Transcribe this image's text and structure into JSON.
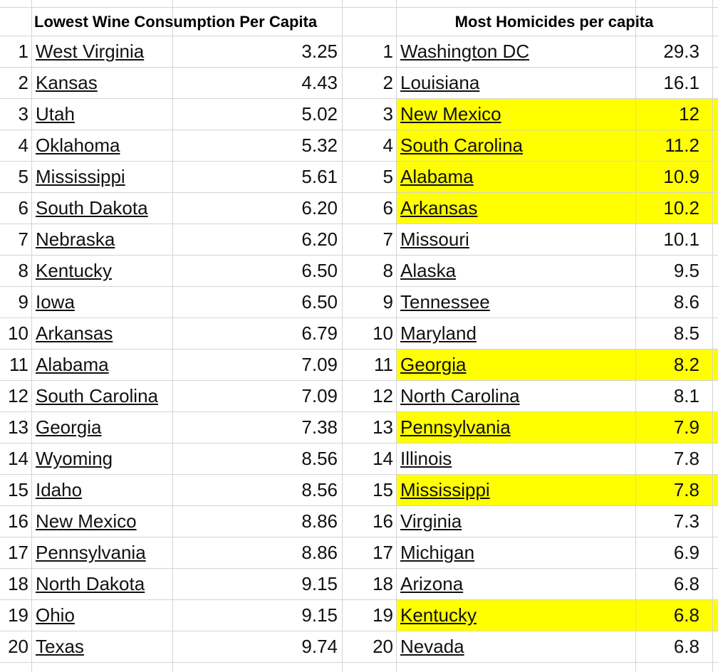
{
  "tables": [
    {
      "title": "Lowest Wine Consumption Per Capita",
      "rows": [
        {
          "rank": "1",
          "name": "West Virginia",
          "value": "3.25"
        },
        {
          "rank": "2",
          "name": "Kansas",
          "value": "4.43"
        },
        {
          "rank": "3",
          "name": "Utah",
          "value": "5.02"
        },
        {
          "rank": "4",
          "name": "Oklahoma",
          "value": "5.32"
        },
        {
          "rank": "5",
          "name": "Mississippi",
          "value": "5.61"
        },
        {
          "rank": "6",
          "name": "South Dakota",
          "value": "6.20"
        },
        {
          "rank": "7",
          "name": "Nebraska",
          "value": "6.20"
        },
        {
          "rank": "8",
          "name": "Kentucky",
          "value": "6.50"
        },
        {
          "rank": "9",
          "name": "Iowa",
          "value": "6.50"
        },
        {
          "rank": "10",
          "name": "Arkansas",
          "value": "6.79"
        },
        {
          "rank": "11",
          "name": "Alabama",
          "value": "7.09"
        },
        {
          "rank": "12",
          "name": "South Carolina",
          "value": "7.09"
        },
        {
          "rank": "13",
          "name": "Georgia",
          "value": "7.38"
        },
        {
          "rank": "14",
          "name": "Wyoming",
          "value": "8.56"
        },
        {
          "rank": "15",
          "name": "Idaho",
          "value": "8.56"
        },
        {
          "rank": "16",
          "name": "New Mexico",
          "value": "8.86"
        },
        {
          "rank": "17",
          "name": "Pennsylvania",
          "value": "8.86"
        },
        {
          "rank": "18",
          "name": "North Dakota",
          "value": "9.15"
        },
        {
          "rank": "19",
          "name": "Ohio",
          "value": "9.15"
        },
        {
          "rank": "20",
          "name": "Texas",
          "value": "9.74"
        }
      ]
    },
    {
      "title": "Most Homicides per capita",
      "rows": [
        {
          "rank": "1",
          "name": "Washington DC",
          "value": "29.3"
        },
        {
          "rank": "2",
          "name": "Louisiana",
          "value": "16.1"
        },
        {
          "rank": "3",
          "name": "New Mexico",
          "value": "12",
          "highlight": true
        },
        {
          "rank": "4",
          "name": "South Carolina",
          "value": "11.2",
          "highlight": true
        },
        {
          "rank": "5",
          "name": "Alabama",
          "value": "10.9",
          "highlight": true
        },
        {
          "rank": "6",
          "name": "Arkansas",
          "value": "10.2",
          "highlight": true
        },
        {
          "rank": "7",
          "name": "Missouri",
          "value": "10.1"
        },
        {
          "rank": "8",
          "name": "Alaska",
          "value": "9.5"
        },
        {
          "rank": "9",
          "name": "Tennessee",
          "value": "8.6"
        },
        {
          "rank": "10",
          "name": "Maryland",
          "value": "8.5"
        },
        {
          "rank": "11",
          "name": "Georgia",
          "value": "8.2",
          "highlight": true
        },
        {
          "rank": "12",
          "name": "North Carolina",
          "value": "8.1"
        },
        {
          "rank": "13",
          "name": "Pennsylvania",
          "value": "7.9",
          "highlight": true
        },
        {
          "rank": "14",
          "name": "Illinois",
          "value": "7.8"
        },
        {
          "rank": "15",
          "name": "Mississippi",
          "value": "7.8",
          "highlight": true
        },
        {
          "rank": "16",
          "name": "Virginia",
          "value": "7.3"
        },
        {
          "rank": "17",
          "name": "Michigan",
          "value": "6.9"
        },
        {
          "rank": "18",
          "name": "Arizona",
          "value": "6.8"
        },
        {
          "rank": "19",
          "name": "Kentucky",
          "value": "6.8",
          "highlight": true
        },
        {
          "rank": "20",
          "name": "Nevada",
          "value": "6.8"
        }
      ]
    }
  ]
}
